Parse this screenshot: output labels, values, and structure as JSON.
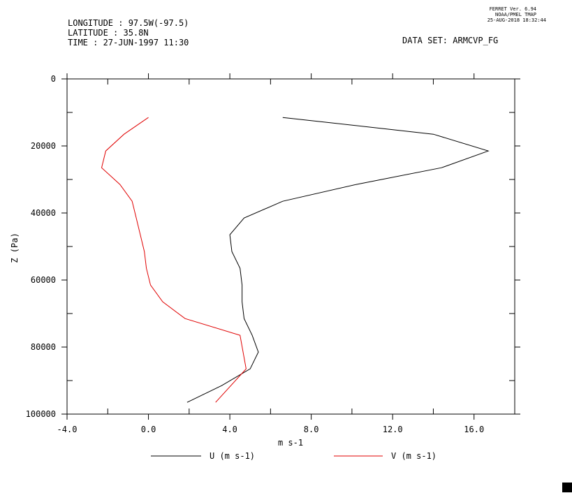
{
  "header": {
    "longitude": "LONGITUDE : 97.5W(-97.5)",
    "latitude": "LATITUDE : 35.8N",
    "time": "TIME : 27-JUN-1997 11:30",
    "dataset": "DATA SET: ARMCVP_FG",
    "version_line1": "FERRET Ver. 6.94",
    "version_line2": "NOAA/PMEL TMAP",
    "version_line3": "25-AUG-2018 18:32:44"
  },
  "chart_data": {
    "type": "line",
    "xlabel": "m s-1",
    "ylabel": "Z (Pa)",
    "xlim": [
      -4.0,
      18.0
    ],
    "ylim": [
      100000,
      0
    ],
    "y_inverted": true,
    "x_ticks_labeled": [
      -4.0,
      0.0,
      4.0,
      8.0,
      12.0,
      16.0
    ],
    "x_tick_labels": [
      "-4.0",
      "0.0",
      "4.0",
      "8.0",
      "12.0",
      "16.0"
    ],
    "x_ticks_minor": [
      -2.0,
      2.0,
      6.0,
      10.0,
      14.0,
      18.0
    ],
    "y_ticks_labeled": [
      0,
      20000,
      40000,
      60000,
      80000,
      100000
    ],
    "y_tick_labels": [
      "0",
      "20000",
      "40000",
      "60000",
      "80000",
      "100000"
    ],
    "y_ticks_minor": [
      10000,
      30000,
      50000,
      70000,
      90000
    ],
    "legend_position": "bottom",
    "series": [
      {
        "name": "U (m s-1)",
        "color": "#000000",
        "x": [
          6.6,
          14.0,
          16.7,
          14.4,
          10.2,
          6.6,
          4.7,
          4.0,
          4.1,
          4.5,
          4.6,
          4.6,
          4.7,
          5.1,
          5.4,
          5.0,
          3.6,
          1.9
        ],
        "y": [
          11500,
          16500,
          21500,
          26500,
          31500,
          36500,
          41500,
          46500,
          51500,
          56500,
          61500,
          66500,
          71500,
          76500,
          81500,
          86500,
          91500,
          96500
        ]
      },
      {
        "name": "V (m s-1)",
        "color": "#e00000",
        "x": [
          0.0,
          -1.2,
          -2.1,
          -2.3,
          -1.4,
          -0.8,
          -0.6,
          -0.4,
          -0.2,
          -0.1,
          0.1,
          0.7,
          1.8,
          4.5,
          4.8,
          3.3
        ],
        "y": [
          11500,
          16500,
          21500,
          26500,
          31500,
          36500,
          41500,
          46500,
          51500,
          56500,
          61500,
          66500,
          71500,
          76500,
          86500,
          96500
        ]
      }
    ]
  }
}
